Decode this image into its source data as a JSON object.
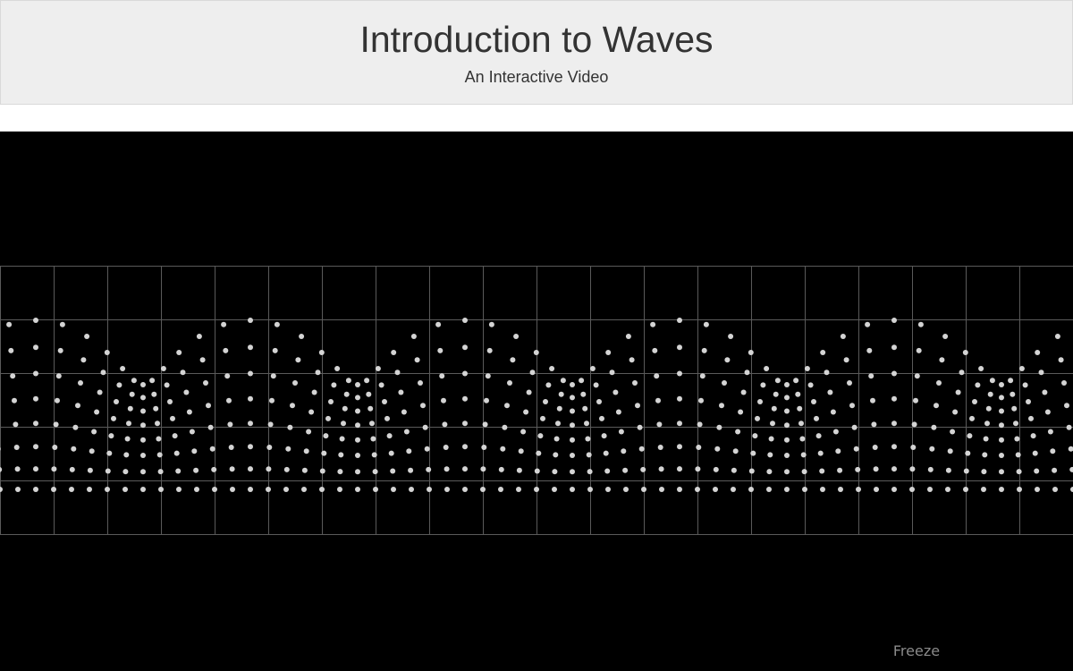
{
  "header": {
    "title": "Introduction to Waves",
    "subtitle": "An Interactive Video"
  },
  "video": {
    "freeze_label": "Freeze",
    "background_color": "#000000",
    "particle_color": "#d4d4d4",
    "grid_color": "#5a5a5a",
    "wave": {
      "columns": 60,
      "rows": 8,
      "crests": 5,
      "amplitude_ratio": 0.5
    }
  },
  "colors": {
    "header_background": "#eeeeee",
    "header_text": "#333333",
    "freeze_text": "#8a8a8a"
  }
}
